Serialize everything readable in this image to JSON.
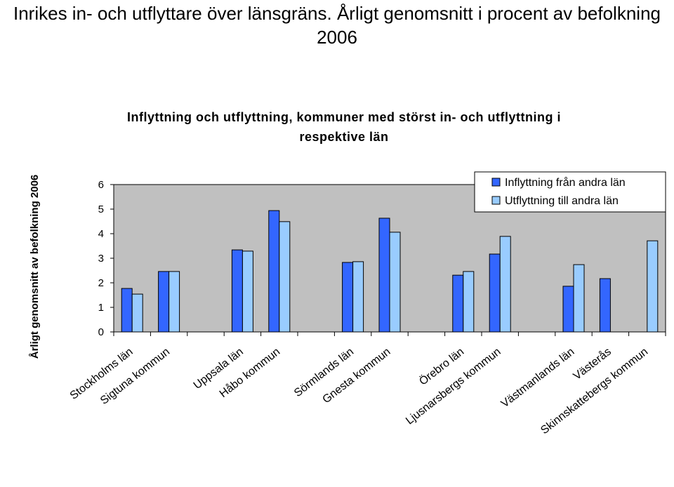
{
  "chart_data": {
    "type": "bar",
    "page_title": "Inrikes in- och utflyttare över länsgräns. Årligt genomsnitt i procent av befolkning 2006",
    "title": "Inflyttning och utflyttning, kommuner med störst in- och utflyttning i respektive län",
    "ylabel": "Årligt genomsnitt av befolkning 2006",
    "categories": [
      "Stockholms län",
      "Sigtuna kommun",
      null,
      "Uppsala län",
      "Håbo kommun",
      null,
      "Sörmlands län",
      "Gnesta kommun",
      null,
      "Örebro län",
      "Ljusnarsbergs kommun",
      null,
      "Västmanlands län",
      "Västerås",
      "Skinnskattebergs kommun"
    ],
    "series": [
      {
        "name": "Inflyttning från andra län",
        "color": "#3366ff",
        "values": [
          1.77,
          2.46,
          null,
          3.34,
          4.94,
          null,
          2.83,
          4.63,
          null,
          2.31,
          3.17,
          null,
          1.86,
          2.17,
          null
        ]
      },
      {
        "name": "Utflyttning till andra län",
        "color": "#99ccff",
        "values": [
          1.54,
          2.46,
          null,
          3.29,
          4.49,
          null,
          2.86,
          4.06,
          null,
          2.46,
          3.89,
          null,
          2.74,
          null,
          3.71
        ]
      }
    ],
    "ylim": [
      0,
      6
    ],
    "yticks": [
      0,
      1,
      2,
      3,
      4,
      5,
      6
    ],
    "grid": false,
    "legend": "upper right"
  }
}
